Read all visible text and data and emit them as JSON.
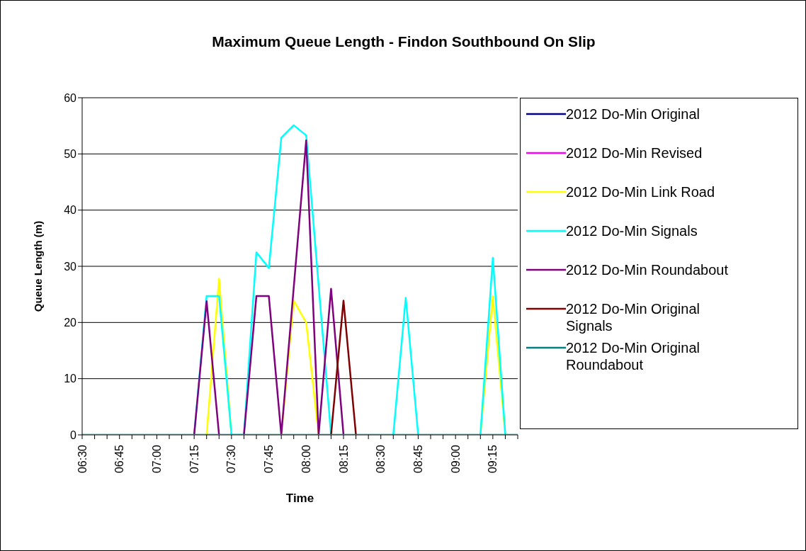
{
  "chart_data": {
    "type": "line",
    "title": "Maximum Queue Length - Findon Southbound On Slip",
    "xlabel": "Time",
    "ylabel": "Queue Length (m)",
    "categories": [
      "06:30",
      null,
      null,
      "06:45",
      null,
      null,
      "07:00",
      null,
      null,
      "07:15",
      null,
      null,
      "07:30",
      null,
      null,
      "07:45",
      null,
      null,
      "08:00",
      null,
      null,
      "08:15",
      null,
      null,
      "08:30",
      null,
      null,
      "08:45",
      null,
      null,
      "09:00",
      null,
      null,
      "09:15",
      null,
      null
    ],
    "series": [
      {
        "name": "2012 Do-Min Original",
        "color": "#000080",
        "values": [
          null,
          null,
          null,
          null,
          null,
          null,
          null,
          null,
          null,
          null,
          null,
          null,
          null,
          null,
          null,
          null,
          null,
          null,
          null,
          null,
          null,
          null,
          null,
          null,
          null,
          null,
          null,
          null,
          null,
          null,
          null,
          null,
          null,
          null,
          null,
          null
        ]
      },
      {
        "name": "2012 Do-Min Revised",
        "color": "#ff00ff",
        "values": [
          null,
          null,
          null,
          null,
          null,
          null,
          null,
          null,
          null,
          null,
          null,
          null,
          null,
          null,
          null,
          null,
          null,
          null,
          null,
          null,
          null,
          null,
          null,
          null,
          null,
          null,
          null,
          null,
          null,
          null,
          null,
          null,
          null,
          null,
          null,
          null
        ]
      },
      {
        "name": "2012 Do-Min Link Road",
        "color": "#ffff00",
        "values": [
          null,
          null,
          null,
          null,
          null,
          null,
          null,
          null,
          null,
          null,
          0,
          27.8,
          0,
          null,
          null,
          null,
          0,
          23.9,
          20,
          0,
          null,
          null,
          null,
          null,
          null,
          null,
          null,
          null,
          null,
          null,
          null,
          null,
          0,
          24.7,
          0,
          null
        ]
      },
      {
        "name": "2012 Do-Min Signals",
        "color": "#00ffff",
        "values": [
          null,
          null,
          null,
          null,
          null,
          null,
          null,
          null,
          null,
          0,
          24.7,
          24.7,
          0,
          0,
          32.5,
          29.7,
          52.9,
          55.1,
          53.3,
          26.6,
          0,
          null,
          null,
          null,
          null,
          0,
          24.4,
          0,
          null,
          null,
          null,
          null,
          0,
          31.5,
          0,
          null
        ]
      },
      {
        "name": "2012 Do-Min Roundabout",
        "color": "#800080",
        "values": [
          null,
          null,
          null,
          null,
          null,
          null,
          null,
          null,
          null,
          0,
          23.8,
          0,
          null,
          0,
          24.7,
          24.7,
          0,
          26.2,
          52.4,
          0,
          26,
          0,
          null,
          null,
          null,
          null,
          null,
          null,
          null,
          null,
          null,
          null,
          null,
          null,
          null,
          null
        ]
      },
      {
        "name": "2012 Do-Min Original Signals",
        "color": "#800000",
        "values": [
          null,
          null,
          null,
          null,
          null,
          null,
          null,
          null,
          null,
          null,
          null,
          null,
          null,
          null,
          null,
          null,
          null,
          null,
          null,
          null,
          0,
          23.9,
          0,
          null,
          null,
          null,
          null,
          null,
          null,
          null,
          null,
          null,
          null,
          null,
          null,
          null
        ]
      },
      {
        "name": "2012 Do-Min Original Roundabout",
        "color": "#008080",
        "values": [
          0,
          0,
          0,
          0,
          0,
          0,
          0,
          0,
          0,
          0,
          0,
          0,
          0,
          0,
          0,
          0,
          0,
          0,
          0,
          0,
          0,
          0,
          0,
          0,
          0,
          0,
          0,
          0,
          0,
          0,
          0,
          0,
          0,
          0,
          0,
          0
        ]
      }
    ],
    "ylim": [
      0,
      60
    ],
    "yticks": [
      0,
      10,
      20,
      30,
      40,
      50,
      60
    ],
    "grid": "y",
    "legend": "right"
  }
}
